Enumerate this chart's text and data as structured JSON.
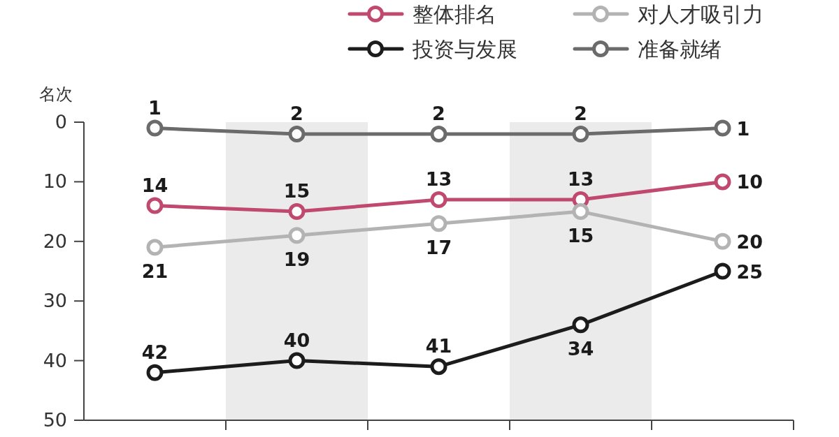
{
  "chart_data": {
    "type": "line",
    "ylabel": "名次",
    "categories": [
      null,
      null,
      null,
      null,
      null
    ],
    "series": [
      {
        "name": "整体排名",
        "color": "#c0496f",
        "values": [
          14,
          15,
          13,
          13,
          10
        ]
      },
      {
        "name": "对人才吸引力",
        "color": "#b3b3b3",
        "values": [
          21,
          19,
          17,
          15,
          20
        ]
      },
      {
        "name": "投资与发展",
        "color": "#1c1c1c",
        "values": [
          42,
          40,
          41,
          34,
          25
        ]
      },
      {
        "name": "准备就绪",
        "color": "#6b6b6b",
        "values": [
          1,
          2,
          2,
          2,
          1
        ]
      }
    ],
    "ylim": [
      50,
      0
    ],
    "yticks": [
      0,
      10,
      20,
      30,
      40,
      50
    ],
    "tick_labels": "y",
    "legend": "top",
    "marker": "circle",
    "line_style": "solid",
    "data_labels": true
  }
}
